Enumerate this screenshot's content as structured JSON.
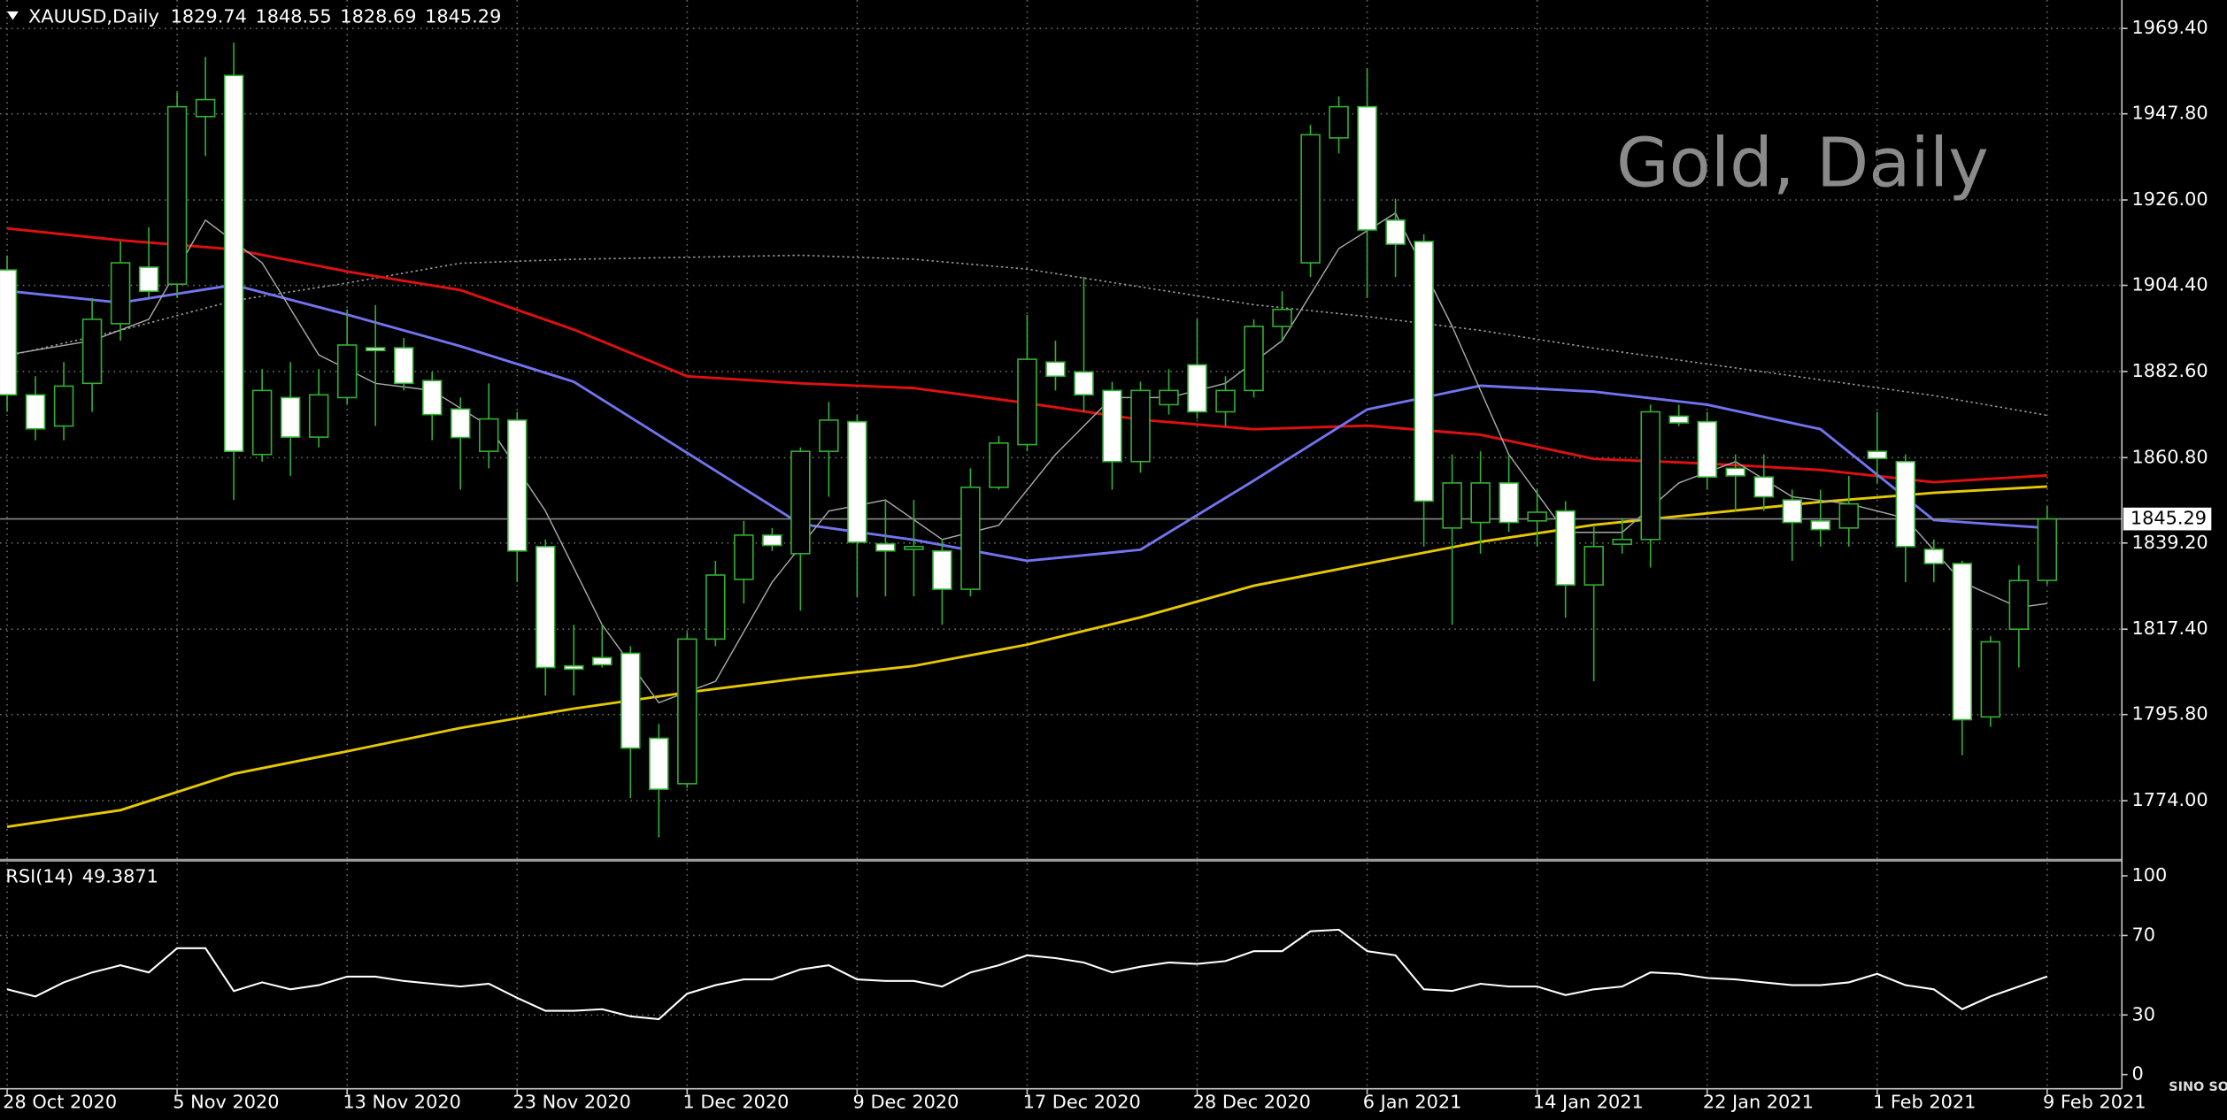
{
  "chart_data": [
    {
      "type": "candlestick",
      "title": "XAUUSD,Daily",
      "watermark": "Gold, Daily",
      "logo": "SINO SOUND",
      "categories": [
        "28 Oct 2020",
        null,
        null,
        null,
        null,
        null,
        "5 Nov 2020",
        null,
        null,
        null,
        null,
        null,
        "13 Nov 2020",
        null,
        null,
        null,
        null,
        null,
        "23 Nov 2020",
        null,
        null,
        null,
        null,
        null,
        "1 Dec 2020",
        null,
        null,
        null,
        null,
        null,
        "9 Dec 2020",
        null,
        null,
        null,
        null,
        null,
        "17 Dec 2020",
        null,
        null,
        null,
        null,
        null,
        "28 Dec 2020",
        null,
        null,
        null,
        null,
        null,
        "6 Jan 2021",
        null,
        null,
        null,
        null,
        null,
        "14 Jan 2021",
        null,
        null,
        null,
        null,
        null,
        "22 Jan 2021",
        null,
        null,
        null,
        null,
        null,
        "1 Feb 2021",
        null,
        null,
        null,
        null,
        null,
        "9 Feb 2021"
      ],
      "open": [
        1908.3,
        1876.7,
        1868.8,
        1879.6,
        1894.7,
        1909,
        1904.7,
        1947.1,
        1957.5,
        1861.6,
        1876,
        1866,
        1876,
        1888.6,
        1888.6,
        1880.3,
        1873.1,
        1862.4,
        1870.3,
        1838.3,
        1808.1,
        1810.2,
        1811.3,
        1789.8,
        1778.3,
        1814.9,
        1830,
        1841.2,
        1836.5,
        1862.4,
        1869.9,
        1839,
        1837.6,
        1837.2,
        1827.5,
        1853.3,
        1864.1,
        1885,
        1882.5,
        1877.8,
        1859.8,
        1874.2,
        1884.3,
        1872.4,
        1877.8,
        1894,
        1910.1,
        1941.7,
        1949.6,
        1920.9,
        1915.5,
        1843,
        1844.4,
        1854.4,
        1844.8,
        1847.3,
        1828.6,
        1838.9,
        1840.1,
        1871.3,
        1869.9,
        1858.1,
        1855.9,
        1850.1,
        1844.8,
        1843,
        1862.4,
        1859.8,
        1837.6,
        1834,
        1795.2,
        1817.4,
        1829.74
      ],
      "high": [
        1911.9,
        1881.4,
        1885,
        1901.2,
        1915.5,
        1919.1,
        1953.2,
        1962.2,
        1965.8,
        1883.2,
        1885,
        1883.2,
        1898.3,
        1899.4,
        1891.1,
        1882.5,
        1876,
        1879.6,
        1872.4,
        1840.1,
        1818.5,
        1818.5,
        1813.1,
        1793.4,
        1816.7,
        1834.7,
        1844.8,
        1843,
        1863.4,
        1874.9,
        1871.7,
        1850.1,
        1850.1,
        1840.1,
        1858.1,
        1866.3,
        1896.9,
        1890.4,
        1906.5,
        1880,
        1880,
        1883.2,
        1895.8,
        1881.4,
        1895.8,
        1902.9,
        1945,
        1952.2,
        1959.3,
        1926.3,
        1917.3,
        1861.6,
        1862.4,
        1861.6,
        1852.7,
        1849.8,
        1843.7,
        1845.5,
        1874.2,
        1874.2,
        1872.4,
        1861.6,
        1861.6,
        1852.7,
        1852.7,
        1856.2,
        1872.4,
        1861.6,
        1840.1,
        1834.7,
        1815.6,
        1833.6,
        1848.55
      ],
      "low": [
        1872.4,
        1865.2,
        1865.2,
        1872.4,
        1890.4,
        1901.2,
        1901.2,
        1937.1,
        1850.1,
        1859.8,
        1856.2,
        1863.4,
        1874.2,
        1868.8,
        1877.8,
        1865.2,
        1852.7,
        1858.1,
        1829.3,
        1800.6,
        1800.6,
        1807.7,
        1774.7,
        1764.7,
        1777.2,
        1813.1,
        1823.9,
        1837.2,
        1822.1,
        1850.9,
        1825.7,
        1825.7,
        1825.7,
        1818.5,
        1825.7,
        1852.7,
        1862.4,
        1877.8,
        1872.4,
        1852.7,
        1857,
        1871.7,
        1870.6,
        1868.8,
        1876,
        1890.4,
        1906.5,
        1937.8,
        1901.2,
        1906.5,
        1838.3,
        1818.5,
        1836.5,
        1842,
        1838.3,
        1820.3,
        1804.2,
        1836.5,
        1833,
        1868.8,
        1852.7,
        1847.3,
        1847.3,
        1834.7,
        1838.3,
        1838.3,
        1854.4,
        1829.3,
        1829.3,
        1785.5,
        1792.7,
        1807.7,
        1828.69
      ],
      "close": [
        1876.7,
        1868.1,
        1878.9,
        1895.8,
        1910.1,
        1902.9,
        1949.6,
        1951.4,
        1862.4,
        1877.8,
        1866,
        1876.7,
        1889.3,
        1887.9,
        1879.6,
        1871.7,
        1865.9,
        1870.6,
        1837.2,
        1807.7,
        1807.3,
        1808.4,
        1787.3,
        1776.9,
        1814.9,
        1831.1,
        1841.2,
        1838.6,
        1862.4,
        1870.3,
        1839.4,
        1837.2,
        1838.3,
        1827.5,
        1853.3,
        1864.5,
        1885.7,
        1881.4,
        1876.7,
        1859.8,
        1877.8,
        1877.8,
        1872.4,
        1877.8,
        1894,
        1898.3,
        1942.5,
        1949.6,
        1918.4,
        1914.8,
        1849.8,
        1854.4,
        1854.4,
        1844.4,
        1847,
        1828.6,
        1838.3,
        1840.1,
        1872.4,
        1869.6,
        1855.9,
        1856.2,
        1850.9,
        1844.4,
        1842.6,
        1849.1,
        1860.6,
        1838.3,
        1834,
        1794.5,
        1814.2,
        1829.7,
        1845.29
      ],
      "up_color": "#000000",
      "down_color": "#ffffff",
      "outline_color": "#33b033",
      "overlays": [
        {
          "color": "#9a9a9a",
          "style": "dotted",
          "x": [
            0,
            4,
            8,
            12,
            16,
            20,
            24,
            28,
            32,
            36,
            40,
            44,
            48,
            52,
            56,
            60,
            64,
            68,
            72
          ],
          "values": [
            1886.5,
            1893,
            1900.5,
            1905,
            1910,
            1911,
            1911.5,
            1912,
            1911,
            1908.5,
            1904,
            1899.5,
            1896.5,
            1893,
            1888.5,
            1884.5,
            1880.5,
            1876.5,
            1871.5
          ]
        },
        {
          "color": "#e6c800",
          "style": "solid",
          "x": [
            0,
            4,
            8,
            12,
            16,
            20,
            24,
            28,
            32,
            36,
            40,
            44,
            48,
            52,
            56,
            60,
            64,
            68,
            72
          ],
          "values": [
            1767.4,
            1771.6,
            1780.8,
            1786.5,
            1792.4,
            1797.3,
            1801.4,
            1805,
            1808.1,
            1813.5,
            1820.4,
            1828.4,
            1834,
            1839.5,
            1843.8,
            1846.7,
            1849.6,
            1851.9,
            1853.5
          ]
        },
        {
          "color": "#e01010",
          "style": "solid",
          "x": [
            0,
            4,
            8,
            12,
            16,
            20,
            24,
            28,
            32,
            36,
            40,
            44,
            48,
            52,
            56,
            60,
            64,
            68,
            72
          ],
          "values": [
            1918.8,
            1915.8,
            1913.5,
            1907.9,
            1903.2,
            1893.2,
            1881.4,
            1879.6,
            1878.4,
            1874.6,
            1870.4,
            1868,
            1868.9,
            1866.6,
            1860.5,
            1859.3,
            1857.7,
            1854.6,
            1856.3
          ]
        },
        {
          "color": "#7373f0",
          "style": "solid",
          "x": [
            0,
            4,
            8,
            12,
            16,
            20,
            24,
            28,
            32,
            36,
            40,
            44,
            48,
            52,
            56,
            60,
            64,
            68,
            72
          ],
          "values": [
            1903,
            1900,
            1904.5,
            1897,
            1889,
            1880,
            1862,
            1844,
            1840,
            1834.7,
            1837.5,
            1855,
            1873,
            1879,
            1877.5,
            1874.2,
            1868,
            1845,
            1843
          ]
        },
        {
          "color": "#a8a8a8",
          "style": "thin",
          "x": [
            0,
            3,
            5,
            7,
            9,
            11,
            13,
            15,
            17,
            19,
            21,
            23,
            25,
            27,
            29,
            31,
            33,
            35,
            37,
            39,
            41,
            43,
            45,
            47,
            49,
            51,
            53,
            55,
            57,
            59,
            61,
            63,
            65,
            67,
            69,
            71,
            72
          ],
          "values": [
            1886.8,
            1890.4,
            1895.8,
            1920.9,
            1910.1,
            1886.8,
            1879.6,
            1877.8,
            1868.8,
            1847.3,
            1818.5,
            1798.8,
            1804.2,
            1829.3,
            1847.3,
            1850.1,
            1840.1,
            1843.7,
            1861.6,
            1876,
            1876,
            1879.6,
            1890.4,
            1913.7,
            1922.7,
            1894,
            1861.6,
            1841.9,
            1841.9,
            1854.4,
            1859.8,
            1850.9,
            1849.1,
            1845.5,
            1829.3,
            1822.9,
            1823.9
          ]
        }
      ],
      "ylim": [
        1759.3,
        1974.8
      ],
      "yticks": [
        {
          "value": 1969.4,
          "label": "1969.40"
        },
        {
          "value": 1947.8,
          "label": "1947.80"
        },
        {
          "value": 1926,
          "label": "1926.00"
        },
        {
          "value": 1904.4,
          "label": "1904.40"
        },
        {
          "value": 1882.6,
          "label": "1882.60"
        },
        {
          "value": 1860.8,
          "label": "1860.80"
        },
        {
          "value": 1839.2,
          "label": "1839.20"
        },
        {
          "value": 1817.4,
          "label": "1817.40"
        },
        {
          "value": 1795.8,
          "label": "1795.80"
        },
        {
          "value": 1774,
          "label": "1774.00"
        }
      ],
      "grid": true
    },
    {
      "type": "line",
      "title": "RSI(14)",
      "color": "#ffffff",
      "values": [
        42.9,
        39.3,
        46.4,
        51.4,
        55,
        51.4,
        63.6,
        63.6,
        42,
        46.4,
        42.9,
        45,
        49.3,
        49.3,
        47.1,
        45.7,
        44.3,
        45.7,
        38.6,
        32.1,
        32.1,
        32.9,
        29.3,
        27.9,
        40.7,
        45,
        47.9,
        47.9,
        52.9,
        55,
        47.9,
        47.1,
        47.1,
        44.3,
        51.4,
        55,
        60,
        58.6,
        56.4,
        51.4,
        54.3,
        56.4,
        55.7,
        57.1,
        62.1,
        62.1,
        72.1,
        72.9,
        62.1,
        60,
        42.9,
        42.1,
        45.7,
        44.3,
        44.3,
        40,
        42.9,
        44.3,
        51.4,
        50.7,
        48.6,
        47.9,
        46.4,
        45,
        45,
        46.4,
        50.7,
        45,
        42.9,
        32.9,
        39.3,
        44.3,
        49.3871
      ],
      "ylim": [
        0,
        100
      ],
      "yticks": [
        100,
        70,
        30,
        0
      ],
      "grid": true
    }
  ]
}
